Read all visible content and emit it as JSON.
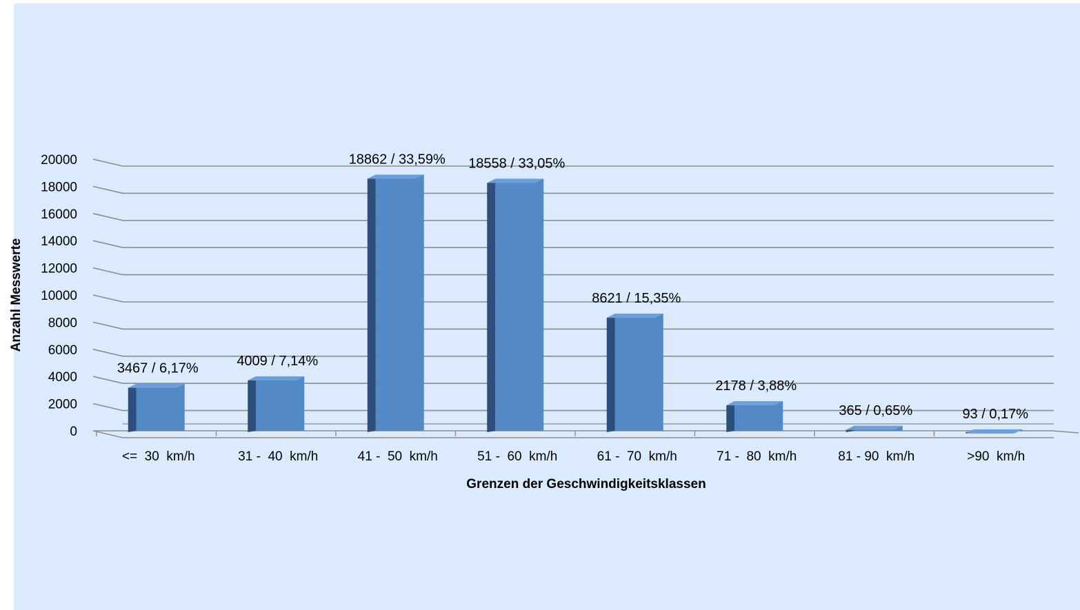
{
  "colors": {
    "background": "#dbeafd",
    "bar_front": "#5489c7",
    "bar_side": "#2e4f7c",
    "bar_top": "#6f9fd8",
    "gridline": "#8c8c8c"
  },
  "chart_data": {
    "type": "bar",
    "style": "3d-clustered-column",
    "title": "",
    "xlabel": "Grenzen der Geschwindigkeitsklassen",
    "ylabel": "Anzahl Messwerte",
    "ylim": [
      0,
      20000
    ],
    "ytick_step": 2000,
    "grid": true,
    "legend": "none",
    "categories": [
      "<=  30  km/h",
      "31 -  40  km/h",
      "41 -  50  km/h",
      "51 -  60  km/h",
      "61 -  70  km/h",
      "71 -  80  km/h",
      "81 - 90  km/h",
      ">90  km/h"
    ],
    "values": [
      3467,
      4009,
      18862,
      18558,
      8621,
      2178,
      365,
      93
    ],
    "data_labels": [
      "3467 / 6,17%",
      "4009 / 7,14%",
      "18862 / 33,59%",
      "18558 / 33,05%",
      "8621 / 15,35%",
      "2178 / 3,88%",
      "365 / 0,65%",
      "93 / 0,17%"
    ]
  }
}
